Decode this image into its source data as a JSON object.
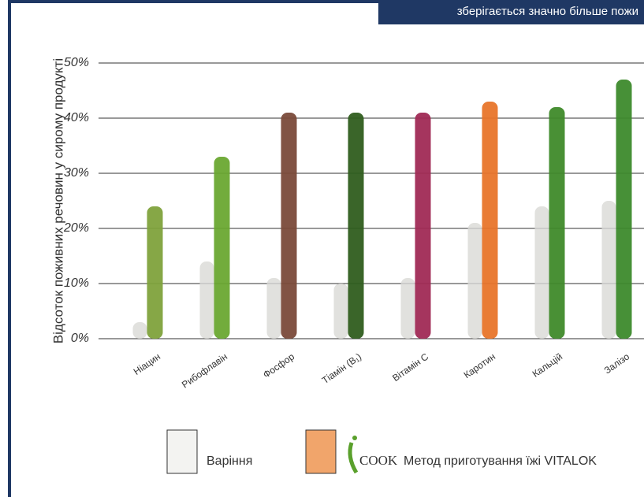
{
  "chart_data": {
    "type": "bar",
    "header": "зберігається значно більше пожи",
    "y_label": "Відсоток поживних речовин у сирому продукті",
    "categories": [
      "Ніацин",
      "Рибофлавін",
      "Фосфор",
      "Тіамін (B₁)",
      "Вітамін C",
      "Каротин",
      "Кальцій",
      "Залізо"
    ],
    "series": [
      {
        "name": "Варіння",
        "color": "#d9d9d6",
        "values": [
          3,
          14,
          11,
          10,
          11,
          21,
          24,
          25
        ]
      },
      {
        "name": "Метод приготування їжі VITALOK",
        "color": "#e8752a",
        "colors": [
          "#7fa23c",
          "#6aa832",
          "#7a4a3a",
          "#2f5d1e",
          "#a02a55",
          "#e8752a",
          "#3f8a2a",
          "#3d8a2c"
        ],
        "values": [
          24,
          33,
          41,
          41,
          41,
          43,
          42,
          47
        ]
      }
    ],
    "logo": "COOK",
    "ylim": [
      0,
      50
    ],
    "yticks": [
      {
        "value": 0,
        "label": "0%"
      },
      {
        "value": 10,
        "label": "10%"
      },
      {
        "value": 20,
        "label": "20%"
      },
      {
        "value": 30,
        "label": "30%"
      },
      {
        "value": 40,
        "label": "40%"
      },
      {
        "value": 50,
        "label": "50%"
      }
    ],
    "grid": true
  }
}
